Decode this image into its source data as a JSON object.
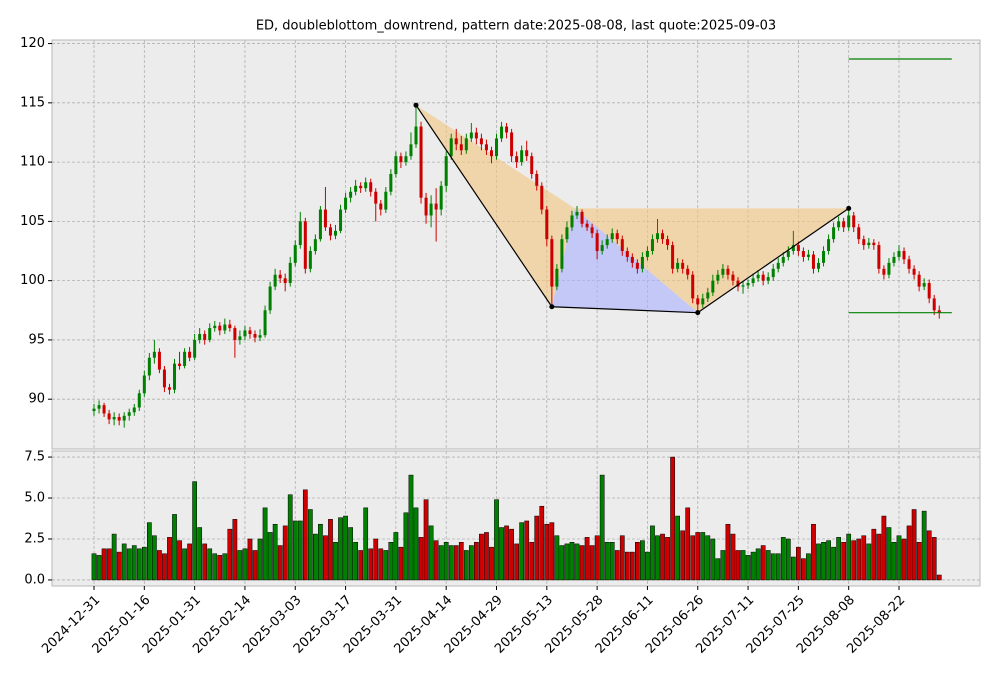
{
  "chart_data": {
    "type": "candlestick",
    "title": "ED, doubleblottom_downtrend, pattern date:2025-08-08, last quote:2025-09-03",
    "up_color": "#008000",
    "down_color": "#cc0000",
    "grid": true,
    "xlim": [
      -8.35,
      176.1
    ],
    "xticks": [
      {
        "value": 0,
        "label": "2024-12-31"
      },
      {
        "value": 10,
        "label": "2025-01-16"
      },
      {
        "value": 20,
        "label": "2025-01-31"
      },
      {
        "value": 30,
        "label": "2025-02-14"
      },
      {
        "value": 40,
        "label": "2025-03-03"
      },
      {
        "value": 50,
        "label": "2025-03-17"
      },
      {
        "value": 60,
        "label": "2025-03-31"
      },
      {
        "value": 70,
        "label": "2025-04-14"
      },
      {
        "value": 80,
        "label": "2025-04-29"
      },
      {
        "value": 90,
        "label": "2025-05-13"
      },
      {
        "value": 100,
        "label": "2025-05-28"
      },
      {
        "value": 110,
        "label": "2025-06-11"
      },
      {
        "value": 120,
        "label": "2025-06-26"
      },
      {
        "value": 130,
        "label": "2025-07-11"
      },
      {
        "value": 140,
        "label": "2025-07-25"
      },
      {
        "value": 150,
        "label": "2025-08-08"
      },
      {
        "value": 160,
        "label": "2025-08-22"
      }
    ],
    "ylim": [
      85.8,
      120.3
    ],
    "yticks": [
      90,
      95,
      100,
      105,
      110,
      115,
      120
    ],
    "volume_ylim": [
      -0.37,
      7.87
    ],
    "volume_yticks": [
      {
        "value": 0,
        "label": "0.0"
      },
      {
        "value": 2.5,
        "label": "2.5"
      },
      {
        "value": 5,
        "label": "5.0"
      },
      {
        "value": 7.5,
        "label": "7.5"
      }
    ],
    "candles": [
      [
        89.0,
        89.6,
        88.6,
        89.2
      ],
      [
        89.2,
        89.9,
        88.8,
        89.5
      ],
      [
        89.5,
        89.7,
        88.5,
        88.8
      ],
      [
        88.8,
        89.1,
        87.9,
        88.3
      ],
      [
        88.3,
        88.9,
        87.8,
        88.5
      ],
      [
        88.5,
        88.8,
        87.8,
        88.2
      ],
      [
        88.2,
        88.9,
        87.6,
        88.6
      ],
      [
        88.6,
        89.2,
        88.2,
        88.9
      ],
      [
        88.9,
        89.6,
        88.6,
        89.3
      ],
      [
        89.3,
        90.8,
        89.0,
        90.5
      ],
      [
        90.5,
        92.4,
        90.2,
        92.0
      ],
      [
        92.0,
        93.9,
        91.6,
        93.5
      ],
      [
        93.5,
        95.0,
        93.0,
        94.0
      ],
      [
        94.0,
        94.3,
        92.2,
        92.5
      ],
      [
        92.5,
        92.8,
        90.6,
        91.0
      ],
      [
        91.0,
        91.3,
        90.4,
        90.8
      ],
      [
        90.8,
        93.4,
        90.5,
        93.0
      ],
      [
        93.0,
        94.0,
        92.5,
        92.8
      ],
      [
        92.8,
        94.3,
        92.6,
        94.0
      ],
      [
        94.0,
        94.4,
        93.2,
        93.5
      ],
      [
        93.5,
        95.5,
        93.3,
        95.0
      ],
      [
        95.0,
        96.0,
        94.7,
        95.5
      ],
      [
        95.5,
        95.8,
        94.6,
        95.0
      ],
      [
        95.0,
        96.4,
        94.8,
        96.0
      ],
      [
        96.0,
        96.6,
        95.7,
        96.2
      ],
      [
        96.2,
        96.5,
        95.4,
        95.8
      ],
      [
        95.8,
        96.8,
        95.5,
        96.3
      ],
      [
        96.3,
        96.7,
        95.7,
        96.0
      ],
      [
        96.0,
        96.2,
        93.5,
        95.0
      ],
      [
        95.0,
        95.8,
        94.6,
        95.3
      ],
      [
        95.3,
        96.2,
        95.0,
        95.8
      ],
      [
        95.8,
        96.1,
        95.1,
        95.5
      ],
      [
        95.5,
        95.8,
        94.8,
        95.2
      ],
      [
        95.2,
        95.9,
        94.9,
        95.4
      ],
      [
        95.4,
        97.9,
        95.2,
        97.5
      ],
      [
        97.5,
        99.9,
        97.2,
        99.5
      ],
      [
        99.5,
        101.0,
        99.2,
        100.5
      ],
      [
        100.5,
        100.9,
        99.8,
        100.2
      ],
      [
        100.2,
        100.6,
        99.1,
        99.8
      ],
      [
        99.8,
        102.0,
        99.5,
        101.5
      ],
      [
        101.5,
        103.4,
        101.2,
        103.0
      ],
      [
        103.0,
        105.8,
        102.7,
        105.0
      ],
      [
        105.0,
        105.3,
        100.6,
        101.0
      ],
      [
        101.0,
        102.9,
        100.7,
        102.5
      ],
      [
        102.5,
        103.9,
        102.2,
        103.5
      ],
      [
        103.5,
        106.3,
        103.3,
        106.0
      ],
      [
        106.0,
        107.9,
        104.2,
        104.5
      ],
      [
        104.5,
        104.8,
        103.4,
        103.8
      ],
      [
        103.8,
        104.7,
        103.5,
        104.2
      ],
      [
        104.2,
        106.4,
        104.0,
        106.0
      ],
      [
        106.0,
        107.4,
        105.7,
        107.0
      ],
      [
        107.0,
        107.9,
        106.6,
        107.5
      ],
      [
        107.5,
        108.5,
        107.2,
        108.0
      ],
      [
        108.0,
        108.3,
        107.4,
        107.8
      ],
      [
        107.8,
        108.7,
        107.5,
        108.3
      ],
      [
        108.3,
        108.6,
        107.1,
        107.5
      ],
      [
        107.5,
        107.8,
        105.0,
        106.5
      ],
      [
        106.5,
        106.8,
        105.5,
        106.0
      ],
      [
        106.0,
        107.9,
        105.7,
        107.5
      ],
      [
        107.5,
        109.4,
        107.2,
        109.0
      ],
      [
        109.0,
        110.9,
        108.7,
        110.5
      ],
      [
        110.5,
        110.8,
        109.5,
        110.0
      ],
      [
        110.0,
        110.9,
        109.7,
        110.5
      ],
      [
        110.5,
        112.5,
        110.2,
        111.5
      ],
      [
        111.5,
        114.8,
        111.2,
        113.0
      ],
      [
        113.0,
        113.4,
        106.5,
        107.0
      ],
      [
        107.0,
        107.4,
        104.8,
        105.5
      ],
      [
        105.5,
        107.2,
        104.5,
        106.5
      ],
      [
        106.5,
        107.8,
        103.3,
        106.0
      ],
      [
        106.0,
        108.4,
        105.5,
        108.0
      ],
      [
        108.0,
        110.9,
        107.5,
        110.5
      ],
      [
        110.5,
        112.4,
        110.2,
        112.0
      ],
      [
        112.0,
        112.8,
        111.0,
        111.5
      ],
      [
        111.5,
        112.2,
        110.6,
        111.0
      ],
      [
        111.0,
        112.4,
        110.7,
        112.0
      ],
      [
        112.0,
        113.3,
        111.7,
        112.5
      ],
      [
        112.5,
        112.9,
        111.5,
        112.0
      ],
      [
        112.0,
        112.4,
        111.0,
        111.5
      ],
      [
        111.5,
        111.9,
        110.6,
        111.0
      ],
      [
        111.0,
        111.3,
        109.9,
        110.5
      ],
      [
        110.5,
        112.4,
        110.2,
        112.0
      ],
      [
        112.0,
        113.4,
        111.7,
        113.0
      ],
      [
        113.0,
        113.3,
        112.0,
        112.5
      ],
      [
        112.5,
        112.8,
        110.0,
        110.5
      ],
      [
        110.5,
        110.9,
        109.5,
        110.0
      ],
      [
        110.0,
        111.4,
        109.7,
        111.0
      ],
      [
        111.0,
        111.8,
        110.1,
        110.5
      ],
      [
        110.5,
        110.8,
        108.6,
        109.0
      ],
      [
        109.0,
        109.3,
        107.6,
        108.0
      ],
      [
        108.0,
        108.3,
        105.6,
        106.0
      ],
      [
        106.0,
        106.3,
        102.9,
        103.5
      ],
      [
        103.5,
        103.8,
        97.8,
        99.5
      ],
      [
        99.5,
        101.4,
        99.2,
        101.0
      ],
      [
        101.0,
        103.9,
        100.7,
        103.5
      ],
      [
        103.5,
        105.0,
        103.2,
        104.5
      ],
      [
        104.5,
        105.9,
        104.2,
        105.5
      ],
      [
        105.5,
        106.3,
        105.2,
        105.8
      ],
      [
        105.8,
        106.0,
        104.5,
        104.8
      ],
      [
        104.8,
        105.1,
        104.2,
        104.5
      ],
      [
        104.5,
        104.8,
        103.6,
        104.0
      ],
      [
        104.0,
        104.3,
        101.8,
        102.5
      ],
      [
        102.5,
        103.4,
        102.2,
        103.0
      ],
      [
        103.0,
        103.9,
        102.7,
        103.5
      ],
      [
        103.5,
        104.4,
        103.2,
        104.0
      ],
      [
        104.0,
        104.3,
        103.1,
        103.5
      ],
      [
        103.5,
        103.8,
        102.1,
        102.5
      ],
      [
        102.5,
        102.8,
        101.6,
        102.0
      ],
      [
        102.0,
        102.3,
        101.1,
        101.5
      ],
      [
        101.5,
        101.8,
        100.6,
        101.0
      ],
      [
        101.0,
        102.4,
        100.7,
        102.0
      ],
      [
        102.0,
        102.9,
        101.7,
        102.5
      ],
      [
        102.5,
        103.9,
        102.2,
        103.5
      ],
      [
        103.5,
        105.2,
        103.2,
        104.0
      ],
      [
        104.0,
        104.3,
        103.1,
        103.5
      ],
      [
        103.5,
        103.8,
        102.6,
        103.0
      ],
      [
        103.0,
        103.3,
        100.6,
        101.0
      ],
      [
        101.0,
        101.9,
        100.7,
        101.5
      ],
      [
        101.5,
        101.8,
        100.6,
        101.0
      ],
      [
        101.0,
        101.3,
        100.1,
        100.5
      ],
      [
        100.5,
        100.8,
        98.1,
        98.5
      ],
      [
        98.5,
        98.8,
        97.3,
        98.0
      ],
      [
        98.0,
        98.9,
        97.7,
        98.5
      ],
      [
        98.5,
        99.4,
        98.2,
        99.0
      ],
      [
        99.0,
        100.5,
        98.7,
        100.0
      ],
      [
        100.0,
        100.9,
        99.7,
        100.5
      ],
      [
        100.5,
        101.4,
        100.2,
        101.0
      ],
      [
        101.0,
        101.3,
        100.1,
        100.5
      ],
      [
        100.5,
        100.8,
        99.6,
        100.0
      ],
      [
        100.0,
        100.3,
        99.1,
        99.5
      ],
      [
        99.5,
        99.9,
        98.9,
        99.6
      ],
      [
        99.6,
        100.1,
        99.3,
        99.8
      ],
      [
        99.8,
        100.6,
        99.5,
        100.2
      ],
      [
        100.2,
        100.9,
        99.9,
        100.5
      ],
      [
        100.5,
        100.8,
        99.6,
        100.0
      ],
      [
        100.0,
        100.7,
        99.7,
        100.3
      ],
      [
        100.3,
        101.4,
        100.0,
        101.0
      ],
      [
        101.0,
        101.9,
        100.7,
        101.5
      ],
      [
        101.5,
        102.4,
        101.2,
        102.0
      ],
      [
        102.0,
        102.9,
        101.7,
        102.5
      ],
      [
        102.5,
        104.2,
        102.2,
        103.0
      ],
      [
        103.0,
        103.3,
        102.1,
        102.5
      ],
      [
        102.5,
        102.8,
        101.6,
        102.0
      ],
      [
        102.0,
        102.6,
        101.7,
        102.2
      ],
      [
        102.2,
        102.5,
        100.6,
        101.0
      ],
      [
        101.0,
        101.9,
        100.7,
        101.5
      ],
      [
        101.5,
        102.9,
        101.2,
        102.5
      ],
      [
        102.5,
        103.9,
        102.2,
        103.5
      ],
      [
        103.5,
        104.9,
        103.2,
        104.5
      ],
      [
        104.5,
        105.4,
        104.2,
        105.0
      ],
      [
        105.0,
        105.3,
        104.1,
        104.5
      ],
      [
        104.5,
        106.1,
        104.2,
        105.5
      ],
      [
        105.5,
        105.8,
        104.1,
        104.5
      ],
      [
        104.5,
        104.8,
        103.1,
        103.5
      ],
      [
        103.5,
        103.8,
        102.6,
        103.0
      ],
      [
        103.0,
        103.6,
        102.7,
        103.2
      ],
      [
        103.2,
        103.5,
        102.6,
        103.0
      ],
      [
        103.0,
        103.3,
        100.6,
        101.0
      ],
      [
        101.0,
        101.3,
        100.1,
        100.5
      ],
      [
        100.5,
        101.9,
        100.2,
        101.5
      ],
      [
        101.5,
        102.4,
        101.2,
        102.0
      ],
      [
        102.0,
        103.0,
        101.7,
        102.5
      ],
      [
        102.5,
        102.8,
        101.4,
        101.8
      ],
      [
        101.8,
        102.1,
        100.6,
        101.0
      ],
      [
        101.0,
        101.3,
        100.1,
        100.5
      ],
      [
        100.5,
        100.8,
        99.1,
        99.5
      ],
      [
        99.5,
        100.2,
        99.2,
        99.8
      ],
      [
        99.8,
        100.1,
        98.1,
        98.5
      ],
      [
        98.5,
        98.8,
        97.1,
        97.5
      ],
      [
        97.5,
        97.9,
        96.8,
        97.3
      ]
    ],
    "volume": [
      1.6,
      1.5,
      1.9,
      1.9,
      2.8,
      1.7,
      2.2,
      1.9,
      2.1,
      1.9,
      2.0,
      3.5,
      2.7,
      1.8,
      1.6,
      2.6,
      4.0,
      2.4,
      1.9,
      2.2,
      6.0,
      3.2,
      2.2,
      1.9,
      1.6,
      1.5,
      1.6,
      3.1,
      3.7,
      1.8,
      1.9,
      2.5,
      1.8,
      2.5,
      4.4,
      2.9,
      3.4,
      2.1,
      3.3,
      5.2,
      3.6,
      3.6,
      5.5,
      4.3,
      2.8,
      3.4,
      2.7,
      3.7,
      2.3,
      3.8,
      3.9,
      3.2,
      2.3,
      1.8,
      4.4,
      1.9,
      2.5,
      1.9,
      1.8,
      2.3,
      2.9,
      2.0,
      4.1,
      6.4,
      4.4,
      2.6,
      4.9,
      3.3,
      2.4,
      2.1,
      2.3,
      2.1,
      2.1,
      2.3,
      1.8,
      2.1,
      2.3,
      2.8,
      2.9,
      2.0,
      4.9,
      3.2,
      3.3,
      3.1,
      2.2,
      3.5,
      3.6,
      2.3,
      3.9,
      4.5,
      3.4,
      3.5,
      2.7,
      2.1,
      2.2,
      2.3,
      2.2,
      2.1,
      2.6,
      2.1,
      2.7,
      6.4,
      2.3,
      2.3,
      1.8,
      2.7,
      1.7,
      1.7,
      2.3,
      2.4,
      1.7,
      3.3,
      2.7,
      2.8,
      2.6,
      7.5,
      3.9,
      3.0,
      4.4,
      2.7,
      2.9,
      2.9,
      2.7,
      2.5,
      1.3,
      1.8,
      3.4,
      2.8,
      1.8,
      1.8,
      1.5,
      1.7,
      1.9,
      2.1,
      1.8,
      1.6,
      1.6,
      2.6,
      2.5,
      1.4,
      2.0,
      1.3,
      1.6,
      3.4,
      2.2,
      2.3,
      2.4,
      2.0,
      2.6,
      2.3,
      2.8,
      2.4,
      2.5,
      2.7,
      2.2,
      3.1,
      2.8,
      3.9,
      3.2,
      2.3,
      2.7,
      2.5,
      3.3,
      4.3,
      2.3,
      4.2,
      3.0,
      2.6,
      0.3
    ],
    "polygons": [
      {
        "color": "#f5c77e",
        "points": [
          {
            "x": 64,
            "y": 114.8
          },
          {
            "x": 91,
            "y": 97.8
          },
          {
            "x": 95.6,
            "y": 106.1
          }
        ]
      },
      {
        "color": "#f5c77e",
        "points": [
          {
            "x": 95.6,
            "y": 106.1
          },
          {
            "x": 150,
            "y": 106.1
          },
          {
            "x": 120,
            "y": 97.3
          }
        ]
      },
      {
        "color": "#aab0ff",
        "points": [
          {
            "x": 91,
            "y": 97.8
          },
          {
            "x": 95.6,
            "y": 106.1
          },
          {
            "x": 120,
            "y": 97.3
          }
        ]
      }
    ],
    "zigzag": {
      "color": "#000000",
      "points": [
        {
          "x": 64,
          "y": 114.8
        },
        {
          "x": 91,
          "y": 97.8
        },
        {
          "x": 120,
          "y": 97.3
        },
        {
          "x": 150,
          "y": 106.1
        }
      ]
    },
    "levels": [
      {
        "y": 118.7,
        "x0": 150,
        "x1": 170.5,
        "color": "#008000"
      },
      {
        "y": 97.3,
        "x0": 150,
        "x1": 170.5,
        "color": "#008000"
      }
    ]
  }
}
